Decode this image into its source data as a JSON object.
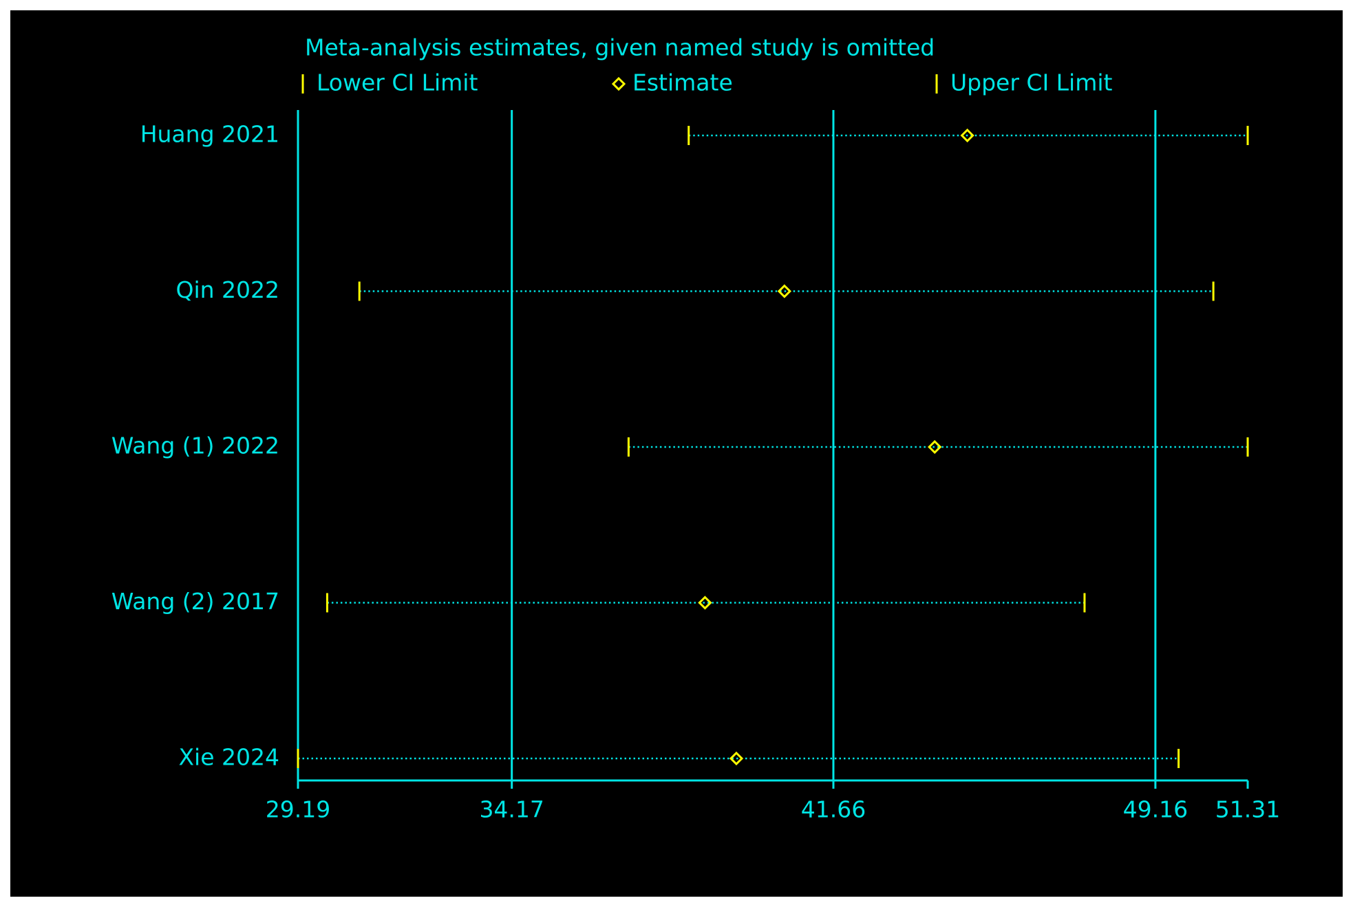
{
  "chart_data": {
    "type": "forest",
    "title": "Meta-analysis estimates, given named study is omitted",
    "categories": [
      "Huang 2021",
      "Qin 2022",
      "Wang (1) 2022",
      "Wang (2) 2017",
      "Xie 2024"
    ],
    "series": [
      {
        "name": "Lower CI Limit",
        "color": "#ffff00",
        "values": [
          38.29,
          30.62,
          36.89,
          29.87,
          29.19
        ]
      },
      {
        "name": "Estimate",
        "color": "#ffff00",
        "values": [
          44.78,
          40.52,
          44.02,
          38.67,
          39.4
        ]
      },
      {
        "name": "Upper CI Limit",
        "color": "#ffff00",
        "values": [
          51.31,
          50.51,
          51.31,
          47.51,
          49.7
        ]
      }
    ],
    "axis_color": "#00e5e5",
    "xlim": [
      29.19,
      51.31
    ],
    "xticks": [
      29.19,
      34.17,
      41.66,
      49.16,
      51.31
    ],
    "grid": true
  }
}
